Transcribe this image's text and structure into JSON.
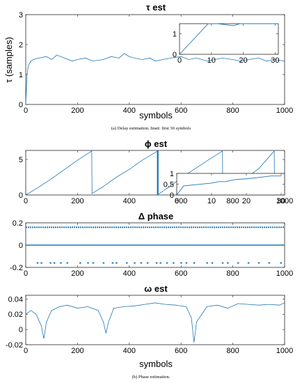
{
  "chart_data": [
    {
      "type": "line",
      "title": "τ est",
      "xlabel": "symbols",
      "ylabel": "τ (samples)",
      "xlim": [
        0,
        1000
      ],
      "ylim": [
        0,
        3
      ],
      "xticks": [
        "0",
        "200",
        "400",
        "600",
        "800",
        "1000"
      ],
      "yticks": [
        "0",
        "1",
        "2",
        "3"
      ],
      "series": [
        {
          "color": "#1f77b4",
          "x": [
            0,
            5,
            10,
            20,
            30,
            50,
            80,
            100,
            120,
            150,
            180,
            200,
            230,
            260,
            300,
            330,
            360,
            380,
            400,
            420,
            450,
            480,
            500,
            530,
            560,
            600,
            630,
            660,
            700,
            730,
            760,
            800,
            830,
            860,
            900,
            930,
            960,
            1000
          ],
          "values": [
            0,
            1.0,
            1.3,
            1.45,
            1.5,
            1.55,
            1.6,
            1.5,
            1.65,
            1.55,
            1.45,
            1.5,
            1.55,
            1.45,
            1.5,
            1.6,
            1.55,
            1.7,
            1.6,
            1.55,
            1.5,
            1.55,
            1.45,
            1.5,
            1.55,
            1.6,
            1.5,
            1.55,
            1.45,
            1.5,
            1.55,
            1.5,
            1.45,
            1.5,
            1.55,
            1.45,
            1.5,
            1.45
          ]
        }
      ],
      "inset": {
        "title": "Inset: first 30 symbols",
        "xlim": [
          0,
          31
        ],
        "ylim": [
          0,
          1.5
        ],
        "xticks": [
          "0",
          "10",
          "20",
          "30"
        ],
        "yticks": [
          "0",
          "1"
        ],
        "x": [
          0,
          9,
          12,
          17,
          19,
          24,
          31
        ],
        "values": [
          0,
          1.5,
          1.5,
          1.4,
          1.5,
          1.5,
          1.5
        ]
      }
    },
    {
      "type": "line",
      "title": "ϕ est",
      "xlabel": "",
      "ylabel": "",
      "xlim": [
        0,
        1000
      ],
      "ylim": [
        0,
        6.28
      ],
      "xticks": [
        "0",
        "200",
        "400",
        "600",
        "800",
        "1000"
      ],
      "yticks": [
        "0",
        "5"
      ],
      "series": [
        {
          "color": "#1f77b4",
          "x": [
            0,
            50,
            100,
            150,
            200,
            255,
            256,
            300,
            350,
            400,
            450,
            510,
            511,
            520,
            560,
            600,
            650,
            700,
            760,
            761,
            800,
            850,
            900,
            960,
            961,
            1000
          ],
          "values": [
            0,
            1.1,
            2.3,
            3.6,
            4.9,
            6.2,
            0.2,
            1.2,
            2.5,
            3.6,
            4.9,
            6.2,
            0.1,
            0.3,
            1.3,
            2.4,
            3.6,
            4.8,
            6.2,
            0.2,
            1.2,
            2.4,
            3.7,
            6.2,
            0.2,
            1.1
          ]
        }
      ],
      "inset": {
        "xlim": [
          0,
          31
        ],
        "ylim": [
          0,
          1
        ],
        "xticks": [
          "0",
          "10",
          "20",
          "30"
        ],
        "yticks": [
          "0",
          "0.5",
          "1"
        ],
        "x": [
          0,
          2,
          10,
          12,
          14,
          17,
          20,
          23,
          27,
          30
        ],
        "values": [
          0,
          0.42,
          0.55,
          0.62,
          0.62,
          0.72,
          0.75,
          0.8,
          0.88,
          0.88
        ]
      }
    },
    {
      "type": "scatter",
      "title": "Δ phase",
      "xlabel": "",
      "ylabel": "",
      "xlim": [
        0,
        1000
      ],
      "ylim": [
        -0.2,
        0.2
      ],
      "xticks": [
        "0",
        "200",
        "400",
        "600",
        "800",
        "1000"
      ],
      "yticks": [
        "-0.2",
        "0",
        "0.2"
      ],
      "levels": [
        0.16,
        0,
        -0.16
      ],
      "lower_points_x": [
        45,
        60,
        95,
        110,
        135,
        160,
        210,
        240,
        260,
        300,
        335,
        350,
        390,
        420,
        445,
        470,
        505,
        520,
        545,
        570,
        600,
        620,
        650,
        700,
        720,
        760,
        780,
        820,
        860,
        900,
        940,
        985
      ]
    },
    {
      "type": "line",
      "title": "ω est",
      "xlabel": "symbols",
      "ylabel": "",
      "xlim": [
        0,
        1000
      ],
      "ylim": [
        -0.02,
        0.045
      ],
      "xticks": [
        "0",
        "200",
        "400",
        "600",
        "800",
        "1000"
      ],
      "yticks": [
        "-0.02",
        "0",
        "0.02",
        "0.04"
      ],
      "series": [
        {
          "color": "#1f77b4",
          "x": [
            0,
            20,
            40,
            60,
            70,
            80,
            100,
            130,
            160,
            200,
            240,
            280,
            300,
            310,
            320,
            340,
            380,
            420,
            460,
            500,
            540,
            580,
            620,
            640,
            650,
            660,
            700,
            740,
            780,
            820,
            860,
            900,
            940,
            980,
            1000
          ],
          "values": [
            0.02,
            0.025,
            0.02,
            0.005,
            -0.012,
            0.01,
            0.025,
            0.03,
            0.032,
            0.028,
            0.03,
            0.025,
            0.01,
            -0.005,
            0.01,
            0.028,
            0.03,
            0.031,
            0.033,
            0.035,
            0.033,
            0.032,
            0.03,
            0.015,
            -0.017,
            0.01,
            0.03,
            0.032,
            0.028,
            0.034,
            0.033,
            0.032,
            0.033,
            0.032,
            0.035
          ]
        }
      ]
    }
  ],
  "captions": {
    "a": "(a)  Delay estimation. Inset: first 30 symbols",
    "b": "(b)  Phase estimation."
  }
}
